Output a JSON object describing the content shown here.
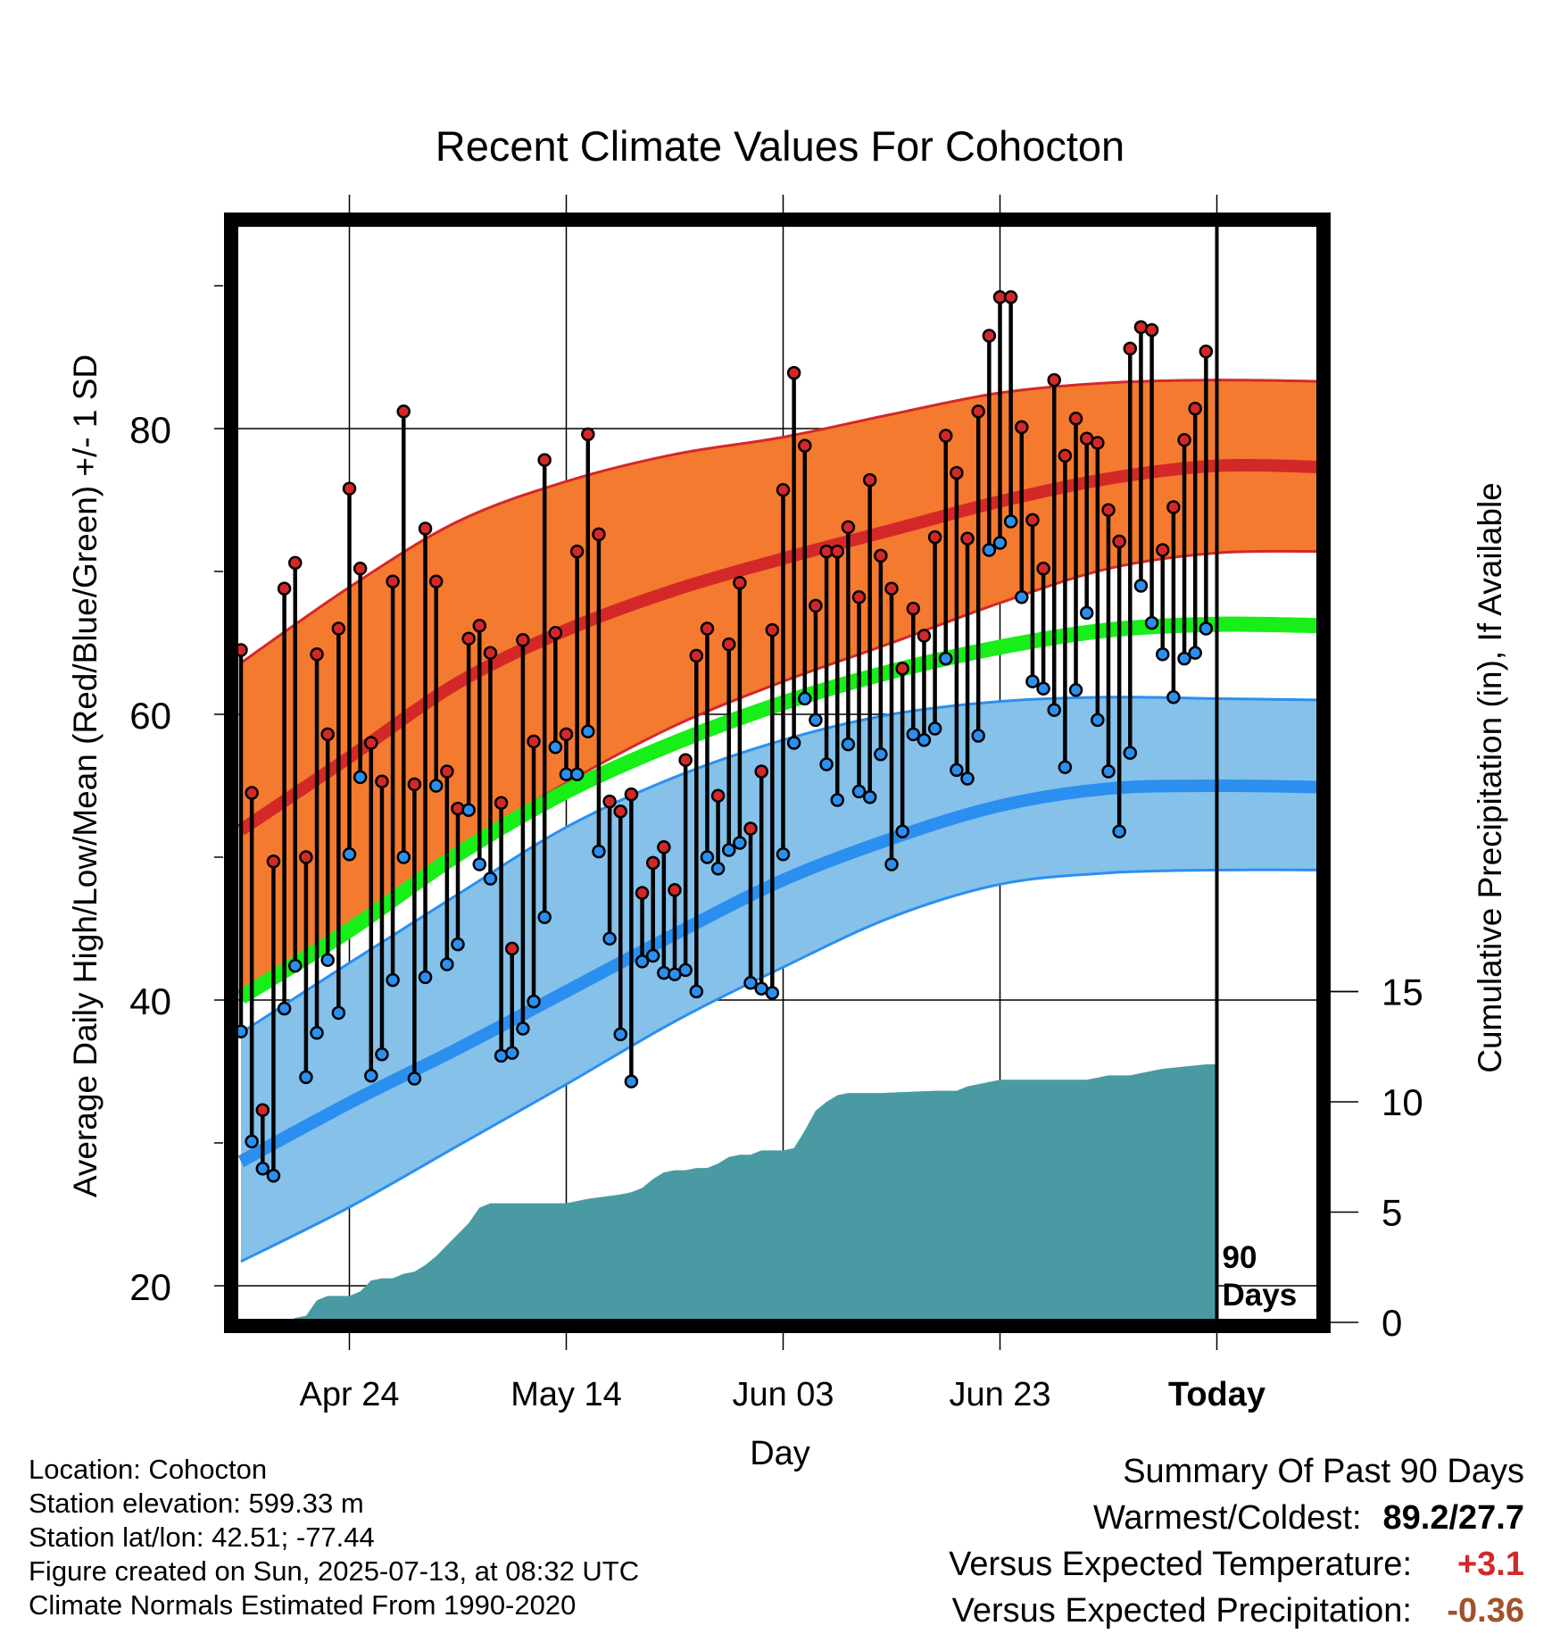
{
  "title": "Recent Climate Values For Cohocton",
  "colors": {
    "high_band": "#f47a30",
    "high_band_edge": "#d42828",
    "high_mean_line": "#d42828",
    "low_band": "#85c1e9",
    "low_band_edge": "#2b8ff0",
    "low_mean_line": "#2b8ff0",
    "mean_line": "#18ee18",
    "precip_fill": "#4a9aa3",
    "high_point": "#d42828",
    "low_point": "#2b8ff0",
    "warm_value": "#d42828",
    "precip_value": "#a0522d"
  },
  "chart_data": {
    "type": "line",
    "title": "Recent Climate Values For Cohocton",
    "xlabel": "Day",
    "ylabel": "Average Daily High/Low/Mean (Red/Blue/Green) +/- 1 SD",
    "y2label": "Cumulative Precipitation (in), If Available",
    "x_ticks": [
      "Apr 24",
      "May 14",
      "Jun 03",
      "Jun 23",
      "Today"
    ],
    "y_ticks": [
      20,
      40,
      60,
      80
    ],
    "y2_ticks": [
      0,
      5,
      10,
      15
    ],
    "ylim": [
      18.2,
      93
    ],
    "y2lim": [
      0,
      40
    ],
    "grid": true,
    "today_marker": "90 Days",
    "normals": {
      "days": [
        1,
        11,
        21,
        31,
        41,
        51,
        61,
        71,
        81,
        91,
        101
      ],
      "high_mean": [
        51.9,
        57.0,
        62.2,
        65.9,
        68.7,
        70.9,
        72.9,
        74.9,
        76.5,
        77.4,
        77.3
      ],
      "high_sd_upper": [
        63.6,
        68.9,
        73.5,
        76.3,
        78.2,
        79.4,
        81.0,
        82.5,
        83.2,
        83.4,
        83.3
      ],
      "high_sd_lower": [
        40.0,
        45.0,
        50.6,
        55.2,
        59.2,
        62.3,
        65.0,
        67.8,
        70.2,
        71.3,
        71.4
      ],
      "mean": [
        40.2,
        44.9,
        50.2,
        54.6,
        58.0,
        60.8,
        63.0,
        64.7,
        65.9,
        66.3,
        66.2
      ],
      "low_mean": [
        28.7,
        32.8,
        36.6,
        40.6,
        44.6,
        48.4,
        51.3,
        53.6,
        54.8,
        55.0,
        54.9
      ],
      "low_sd_upper": [
        37.7,
        42.6,
        47.4,
        52.1,
        55.6,
        58.2,
        60.0,
        60.9,
        61.2,
        61.1,
        61.0
      ],
      "low_sd_lower": [
        21.7,
        25.5,
        29.8,
        34.1,
        38.5,
        42.3,
        45.8,
        48.1,
        48.9,
        49.1,
        49.1
      ]
    },
    "daily": {
      "days": [
        1,
        2,
        3,
        4,
        5,
        6,
        7,
        8,
        9,
        10,
        11,
        12,
        13,
        14,
        15,
        16,
        17,
        18,
        19,
        20,
        21,
        22,
        23,
        24,
        25,
        26,
        27,
        28,
        29,
        30,
        31,
        32,
        33,
        34,
        35,
        36,
        37,
        38,
        39,
        40,
        41,
        42,
        43,
        44,
        45,
        46,
        47,
        48,
        49,
        50,
        51,
        52,
        53,
        54,
        55,
        56,
        57,
        58,
        59,
        60,
        61,
        62,
        63,
        64,
        65,
        66,
        67,
        68,
        69,
        70,
        71,
        72,
        73,
        74,
        75,
        76,
        77,
        78,
        79,
        80,
        81,
        82,
        83,
        84,
        85,
        86,
        87,
        88,
        89,
        90
      ],
      "high": [
        64.5,
        54.5,
        32.3,
        49.7,
        68.8,
        70.6,
        50.0,
        64.2,
        58.6,
        66.0,
        75.8,
        70.2,
        58.0,
        55.3,
        69.3,
        81.2,
        55.1,
        73.0,
        69.3,
        56.0,
        53.4,
        65.3,
        66.2,
        64.3,
        53.8,
        43.6,
        65.2,
        58.1,
        77.8,
        65.7,
        58.6,
        71.4,
        79.6,
        72.6,
        53.9,
        53.2,
        54.4,
        47.5,
        49.6,
        50.7,
        47.7,
        56.8,
        64.1,
        66.0,
        54.3,
        64.9,
        69.2,
        52.0,
        56.0,
        65.9,
        75.7,
        83.9,
        78.8,
        67.6,
        71.4,
        71.4,
        73.1,
        68.2,
        76.4,
        71.1,
        68.8,
        63.2,
        67.4,
        65.5,
        72.4,
        79.5,
        76.9,
        72.3,
        81.2,
        86.5,
        89.2,
        89.2,
        80.1,
        73.6,
        70.2,
        83.4,
        78.1,
        80.7,
        79.3,
        79.0,
        74.3,
        72.1,
        85.6,
        87.1,
        86.9,
        71.5,
        74.5,
        79.2,
        81.4,
        85.4
      ],
      "low": [
        37.8,
        30.1,
        28.2,
        27.7,
        39.4,
        42.4,
        34.6,
        37.7,
        42.8,
        39.1,
        50.2,
        55.6,
        34.7,
        36.2,
        41.4,
        50.0,
        34.5,
        41.6,
        55.0,
        42.5,
        43.9,
        53.3,
        49.5,
        48.5,
        36.1,
        36.3,
        38.0,
        39.9,
        45.8,
        57.7,
        55.8,
        55.8,
        58.8,
        50.4,
        44.3,
        37.6,
        34.3,
        42.7,
        43.1,
        41.9,
        41.8,
        42.1,
        40.6,
        50.0,
        49.2,
        50.5,
        51.0,
        41.2,
        40.8,
        40.5,
        50.2,
        58.0,
        61.1,
        59.6,
        56.5,
        54.0,
        57.9,
        54.6,
        54.2,
        57.2,
        49.5,
        51.8,
        58.6,
        58.2,
        59.0,
        63.9,
        56.1,
        55.5,
        58.5,
        71.5,
        72.0,
        73.5,
        68.2,
        62.3,
        61.8,
        60.3,
        56.3,
        61.7,
        67.1,
        59.6,
        56.0,
        51.8,
        57.3,
        69.0,
        66.4,
        64.2,
        61.2,
        63.9,
        64.3,
        66.0
      ]
    },
    "precip": {
      "days": [
        1,
        5,
        6,
        7,
        8,
        9,
        10,
        11,
        12,
        13,
        14,
        15,
        16,
        17,
        18,
        19,
        20,
        21,
        22,
        23,
        24,
        25,
        26,
        31,
        32,
        33,
        36,
        37,
        38,
        39,
        40,
        41,
        42,
        43,
        44,
        45,
        46,
        47,
        48,
        49,
        50,
        51,
        52,
        53,
        54,
        55,
        56,
        57,
        60,
        65,
        66,
        67,
        68,
        71,
        78,
        79,
        80,
        81,
        82,
        83,
        84,
        85,
        86,
        90,
        91
      ],
      "values": [
        0,
        0,
        0.2,
        0.3,
        1.0,
        1.2,
        1.2,
        1.2,
        1.4,
        1.9,
        2.0,
        2.0,
        2.2,
        2.3,
        2.6,
        3.0,
        3.5,
        4.0,
        4.5,
        5.2,
        5.4,
        5.4,
        5.4,
        5.4,
        5.5,
        5.6,
        5.8,
        5.9,
        6.1,
        6.5,
        6.8,
        6.9,
        6.9,
        7.0,
        7.0,
        7.2,
        7.5,
        7.6,
        7.6,
        7.8,
        7.8,
        7.8,
        7.9,
        8.7,
        9.6,
        10.0,
        10.3,
        10.4,
        10.4,
        10.5,
        10.5,
        10.5,
        10.7,
        11.0,
        11.0,
        11.0,
        11.1,
        11.2,
        11.2,
        11.2,
        11.3,
        11.4,
        11.5,
        11.7,
        11.7
      ]
    }
  },
  "info": {
    "location": "Location: Cohocton",
    "elevation": "Station elevation: 599.33 m",
    "latlon": "Station lat/lon: 42.51; -77.44",
    "created": "Figure created on Sun, 2025-07-13, at 08:32 UTC",
    "normals": "Climate Normals Estimated From 1990-2020"
  },
  "summary": {
    "title": "Summary Of Past 90 Days",
    "warm_cold_label": "Warmest/Coldest:",
    "warm_cold_value": "89.2/27.7",
    "temp_label": "Versus Expected Temperature:",
    "temp_value": "+3.1",
    "precip_label": "Versus Expected Precipitation:",
    "precip_value": "-0.36"
  }
}
